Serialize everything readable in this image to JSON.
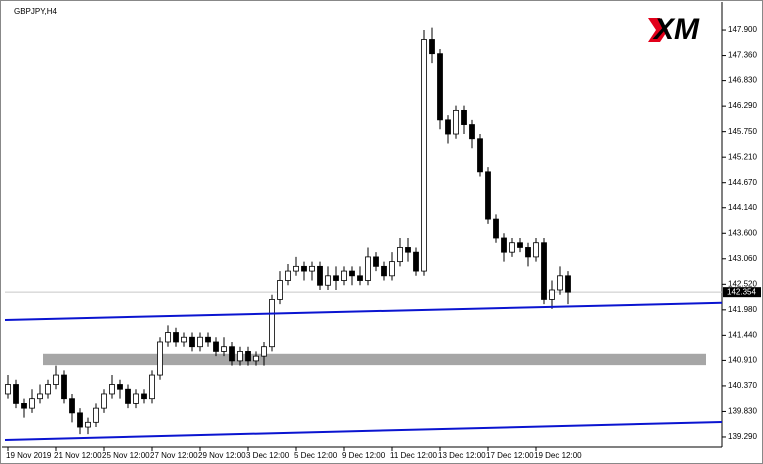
{
  "chart_data": {
    "type": "candlestick",
    "title": "GBPJPY,H4",
    "logo": "XM",
    "categories": [
      "19 Nov 2019",
      null,
      null,
      null,
      null,
      null,
      "21 Nov 12:00",
      null,
      null,
      null,
      null,
      null,
      "25 Nov 12:00",
      null,
      null,
      null,
      null,
      null,
      "27 Nov 12:00",
      null,
      null,
      null,
      null,
      null,
      "29 Nov 12:00",
      null,
      null,
      null,
      null,
      null,
      "3 Dec 12:00",
      null,
      null,
      null,
      null,
      null,
      "5 Dec 12:00",
      null,
      null,
      null,
      null,
      null,
      "9 Dec 12:00",
      null,
      null,
      null,
      null,
      null,
      "11 Dec 12:00",
      null,
      null,
      null,
      null,
      null,
      "13 Dec 12:00",
      null,
      null,
      null,
      null,
      null,
      "17 Dec 12:00",
      null,
      null,
      null,
      null,
      null,
      "19 Dec 12:00",
      null,
      null,
      null,
      null
    ],
    "open": [
      140.2,
      140.4,
      140.0,
      139.9,
      140.1,
      140.2,
      140.4,
      140.6,
      140.1,
      139.8,
      139.5,
      139.6,
      139.9,
      140.2,
      140.4,
      140.3,
      140.0,
      140.2,
      140.1,
      140.6,
      141.3,
      141.5,
      141.3,
      141.4,
      141.2,
      141.4,
      141.3,
      141.1,
      141.2,
      140.9,
      141.1,
      140.9,
      141.0,
      141.2,
      142.2,
      142.6,
      142.8,
      142.9,
      142.8,
      142.9,
      142.5,
      142.7,
      142.6,
      142.8,
      142.7,
      142.6,
      143.1,
      142.9,
      142.7,
      143.0,
      143.3,
      143.2,
      142.8,
      147.7,
      147.4,
      146.0,
      145.7,
      146.2,
      145.9,
      145.6,
      144.9,
      143.9,
      143.5,
      143.2,
      143.4,
      143.3,
      143.1,
      143.4,
      142.2,
      142.4,
      142.7
    ],
    "high": [
      140.6,
      140.5,
      140.1,
      140.3,
      140.4,
      140.5,
      140.8,
      140.7,
      140.2,
      139.9,
      139.7,
      140.0,
      140.3,
      140.6,
      140.5,
      140.4,
      140.3,
      140.3,
      140.7,
      141.4,
      141.65,
      141.6,
      141.5,
      141.5,
      141.5,
      141.5,
      141.4,
      141.4,
      141.3,
      141.2,
      141.2,
      141.1,
      141.3,
      142.3,
      142.8,
      142.95,
      143.1,
      143.0,
      143.0,
      143.0,
      142.9,
      142.9,
      142.9,
      142.9,
      142.9,
      143.3,
      143.2,
      143.0,
      143.2,
      143.5,
      143.5,
      143.3,
      147.9,
      147.95,
      147.5,
      146.1,
      146.3,
      146.3,
      146.0,
      145.7,
      145.0,
      144.0,
      143.6,
      143.5,
      143.5,
      143.4,
      143.5,
      143.5,
      142.6,
      142.9,
      142.8
    ],
    "low": [
      140.1,
      139.9,
      139.7,
      139.8,
      140.0,
      140.1,
      140.3,
      140.0,
      139.6,
      139.35,
      139.35,
      139.5,
      139.8,
      140.1,
      140.1,
      139.9,
      139.9,
      140.0,
      140.0,
      140.5,
      141.2,
      141.2,
      141.2,
      141.1,
      141.1,
      141.2,
      141.0,
      141.0,
      140.8,
      140.8,
      140.8,
      140.8,
      140.8,
      141.1,
      142.1,
      142.5,
      142.7,
      142.6,
      142.6,
      142.4,
      142.4,
      142.4,
      142.5,
      142.5,
      142.5,
      142.5,
      142.8,
      142.6,
      142.6,
      142.9,
      143.0,
      142.7,
      142.7,
      147.2,
      145.8,
      145.5,
      145.6,
      145.7,
      145.4,
      144.8,
      143.8,
      143.4,
      143.0,
      143.1,
      143.2,
      142.9,
      143.0,
      142.1,
      142.0,
      142.3,
      142.1
    ],
    "close": [
      140.4,
      140.0,
      139.9,
      140.1,
      140.2,
      140.4,
      140.6,
      140.1,
      139.8,
      139.5,
      139.6,
      139.9,
      140.2,
      140.4,
      140.3,
      140.0,
      140.2,
      140.1,
      140.6,
      141.3,
      141.5,
      141.3,
      141.4,
      141.2,
      141.4,
      141.3,
      141.1,
      141.2,
      140.9,
      141.1,
      140.9,
      141.0,
      141.2,
      142.2,
      142.6,
      142.8,
      142.9,
      142.8,
      142.9,
      142.5,
      142.7,
      142.6,
      142.8,
      142.7,
      142.6,
      143.1,
      142.9,
      142.7,
      143.0,
      143.3,
      143.2,
      142.8,
      147.7,
      147.4,
      146.0,
      145.7,
      146.2,
      145.9,
      145.6,
      144.9,
      143.9,
      143.5,
      143.2,
      143.4,
      143.3,
      143.1,
      143.4,
      142.2,
      142.4,
      142.7,
      142.354
    ],
    "ylim": [
      139.12,
      148.43
    ],
    "yticks": [
      {
        "value": 147.9,
        "label": "147.900"
      },
      {
        "value": 147.36,
        "label": "147.360"
      },
      {
        "value": 146.83,
        "label": "146.830"
      },
      {
        "value": 146.29,
        "label": "146.290"
      },
      {
        "value": 145.75,
        "label": "145.750"
      },
      {
        "value": 145.21,
        "label": "145.210"
      },
      {
        "value": 144.67,
        "label": "144.670"
      },
      {
        "value": 144.14,
        "label": "144.140"
      },
      {
        "value": 143.6,
        "label": "143.600"
      },
      {
        "value": 143.06,
        "label": "143.060"
      },
      {
        "value": 142.52,
        "label": "142.520"
      },
      {
        "value": 141.98,
        "label": "141.980"
      },
      {
        "value": 141.44,
        "label": "141.440"
      },
      {
        "value": 140.91,
        "label": "140.910"
      },
      {
        "value": 140.37,
        "label": "140.370"
      },
      {
        "value": 139.83,
        "label": "139.830"
      },
      {
        "value": 139.29,
        "label": "139.290"
      }
    ],
    "trendlines": [
      {
        "from": 141.765,
        "to": 142.13,
        "color": "#0a14d0"
      },
      {
        "from": 139.227,
        "to": 139.607,
        "color": "#0a14d0"
      }
    ],
    "zone": {
      "top": 141.05,
      "bottom": 140.81,
      "color": "#a6a6a6"
    },
    "up_color": "#ffffff",
    "down_color": "#000000"
  }
}
